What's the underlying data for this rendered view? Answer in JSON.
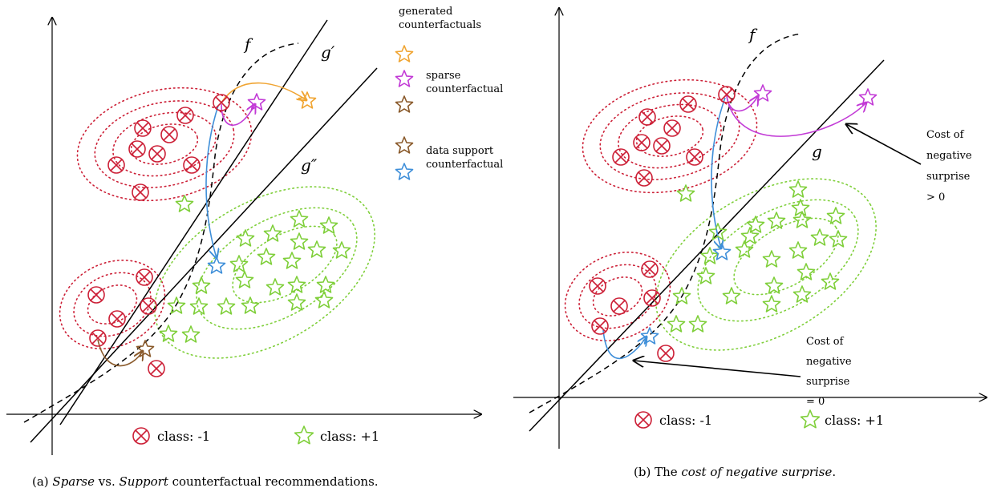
{
  "panel_a": {
    "caption": {
      "prefix": "(a) ",
      "term1": "Sparse",
      "mid": " vs. ",
      "term2": "Support",
      "suffix": " counterfactual recommendations."
    },
    "labels": {
      "f": "f",
      "g1": "g′",
      "g2": "g″"
    },
    "legend_title": [
      "generated",
      "counterfactuals"
    ],
    "legend_sparse": [
      "sparse",
      "counterfactual"
    ],
    "legend_support": [
      "data support",
      "counterfactual"
    ],
    "class_neg": "class: -1",
    "class_pos": "class: +1"
  },
  "panel_b": {
    "caption": {
      "prefix": "(b) The ",
      "term": "cost of negative surprise",
      "suffix": "."
    },
    "labels": {
      "f": "f",
      "g": "g"
    },
    "cost_pos": [
      "Cost of",
      "negative",
      "surprise",
      "> 0"
    ],
    "cost_zero": [
      "Cost of",
      "negative",
      "surprise",
      "= 0"
    ],
    "class_neg": "class: -1",
    "class_pos": "class: +1"
  },
  "colors": {
    "class_neg": "#cc1f36",
    "class_pos": "#7fcf3a",
    "orange": "#f0a431",
    "purple": "#c23ad6",
    "brown": "#8a5a2b",
    "blue": "#3f8fd9"
  },
  "icons": {
    "negative": "circled-times-icon",
    "positive": "star-icon"
  }
}
